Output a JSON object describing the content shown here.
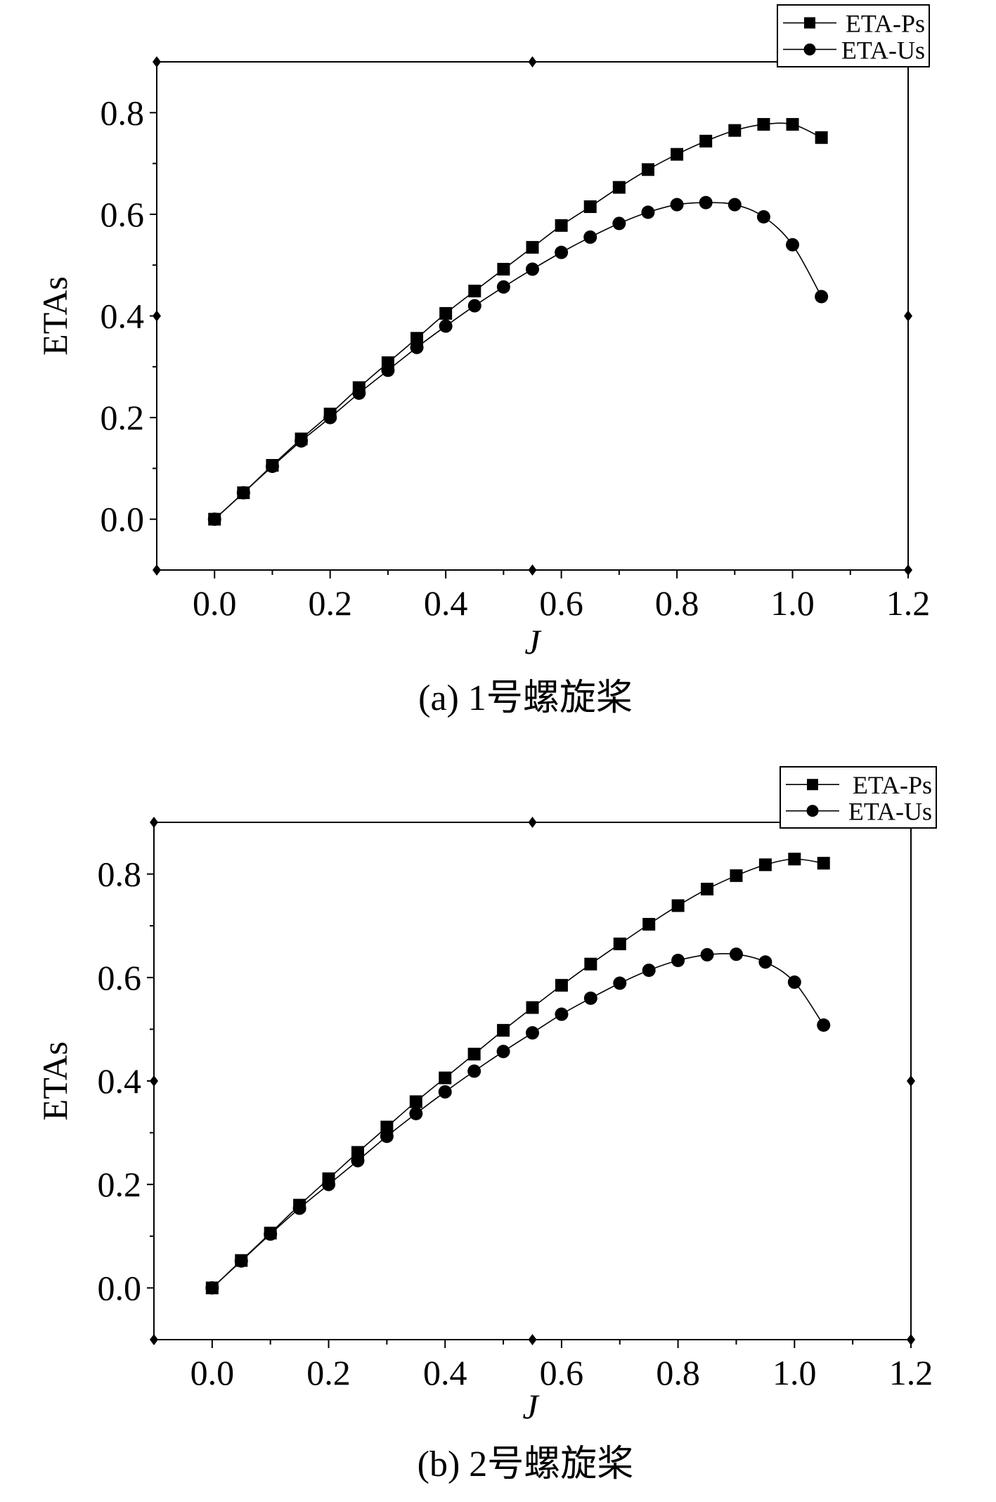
{
  "chart_data": [
    {
      "type": "line",
      "caption": "(a) 1号螺旋桨",
      "xlabel": "J",
      "ylabel": "ETAs",
      "xlim": [
        -0.1,
        1.2
      ],
      "ylim": [
        -0.1,
        0.9
      ],
      "xticks": [
        "0.0",
        "0.2",
        "0.4",
        "0.6",
        "0.8",
        "1.0",
        "1.2"
      ],
      "yticks": [
        "0.0",
        "0.2",
        "0.4",
        "0.6",
        "0.8"
      ],
      "legend_position": "top-right",
      "x": [
        0,
        0.05,
        0.1,
        0.15,
        0.2,
        0.25,
        0.3,
        0.35,
        0.4,
        0.45,
        0.5,
        0.55,
        0.6,
        0.65,
        0.7,
        0.75,
        0.8,
        0.85,
        0.9,
        0.95,
        1.0,
        1.05
      ],
      "series": [
        {
          "name": "ETA-Ps",
          "marker": "square",
          "values": [
            0,
            0.052,
            0.106,
            0.158,
            0.207,
            0.259,
            0.308,
            0.356,
            0.405,
            0.449,
            0.492,
            0.535,
            0.578,
            0.615,
            0.653,
            0.688,
            0.718,
            0.744,
            0.765,
            0.777,
            0.777,
            0.751
          ]
        },
        {
          "name": "ETA-Us",
          "marker": "circle",
          "values": [
            0,
            0.052,
            0.104,
            0.154,
            0.2,
            0.248,
            0.293,
            0.338,
            0.38,
            0.42,
            0.457,
            0.492,
            0.525,
            0.555,
            0.582,
            0.604,
            0.619,
            0.623,
            0.619,
            0.595,
            0.54,
            0.438
          ]
        }
      ]
    },
    {
      "type": "line",
      "caption": "(b) 2号螺旋桨",
      "xlabel": "J",
      "ylabel": "ETAs",
      "xlim": [
        -0.1,
        1.2
      ],
      "ylim": [
        -0.1,
        0.9
      ],
      "xticks": [
        "0.0",
        "0.2",
        "0.4",
        "0.6",
        "0.8",
        "1.0",
        "1.2"
      ],
      "yticks": [
        "0.0",
        "0.2",
        "0.4",
        "0.6",
        "0.8"
      ],
      "legend_position": "top-right",
      "x": [
        0,
        0.05,
        0.1,
        0.15,
        0.2,
        0.25,
        0.3,
        0.35,
        0.4,
        0.45,
        0.5,
        0.55,
        0.6,
        0.65,
        0.7,
        0.75,
        0.8,
        0.85,
        0.9,
        0.95,
        1.0,
        1.05
      ],
      "series": [
        {
          "name": "ETA-Ps",
          "marker": "square",
          "values": [
            0,
            0.053,
            0.106,
            0.16,
            0.211,
            0.262,
            0.311,
            0.36,
            0.406,
            0.452,
            0.498,
            0.542,
            0.585,
            0.626,
            0.665,
            0.703,
            0.739,
            0.771,
            0.797,
            0.818,
            0.829,
            0.821
          ]
        },
        {
          "name": "ETA-Us",
          "marker": "circle",
          "values": [
            0,
            0.052,
            0.104,
            0.154,
            0.2,
            0.246,
            0.293,
            0.337,
            0.379,
            0.419,
            0.457,
            0.493,
            0.529,
            0.56,
            0.589,
            0.614,
            0.633,
            0.644,
            0.645,
            0.63,
            0.591,
            0.508
          ]
        }
      ]
    }
  ]
}
